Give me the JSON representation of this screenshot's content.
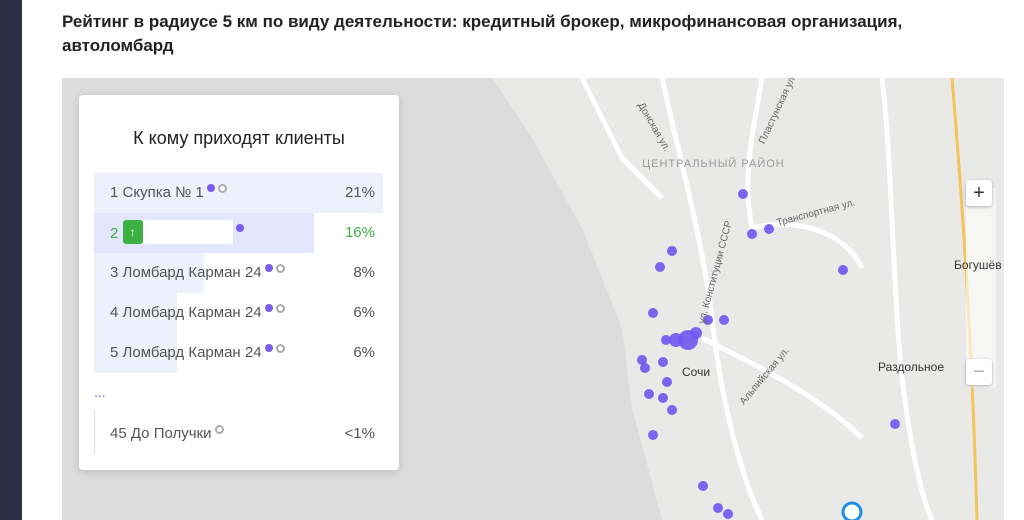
{
  "header": {
    "title": "Рейтинг в радиусе 5 км по виду деятельности: кредитный брокер, микрофинансовая организация, автоломбард"
  },
  "card": {
    "title": "К кому приходят клиенты",
    "rows": [
      {
        "rank": "1",
        "name": "Скупка № 1",
        "share": 21,
        "share_label": "21%"
      },
      {
        "rank": "2",
        "share": 16,
        "share_label": "16%"
      },
      {
        "rank": "3",
        "name": "Ломбард Карман 24",
        "share": 8,
        "share_label": "8%"
      },
      {
        "rank": "4",
        "name": "Ломбард Карман 24",
        "share": 6,
        "share_label": "6%"
      },
      {
        "rank": "5",
        "name": "Ломбард Карман 24",
        "share": 6,
        "share_label": "6%"
      },
      {
        "rank": "45",
        "name": "До Получки",
        "share": 0.5,
        "share_label": "<1%"
      }
    ],
    "ellipsis": "..."
  },
  "map": {
    "labels": [
      "ЦЕНТРАЛЬНЫЙ РАЙОН",
      "Сочи",
      "Раздольное",
      "Богушёв",
      "Транспортная ул.",
      "ул. Конституции СССР",
      "Альпийская ул.",
      "Донская ул.",
      "Пластунская ул."
    ]
  }
}
